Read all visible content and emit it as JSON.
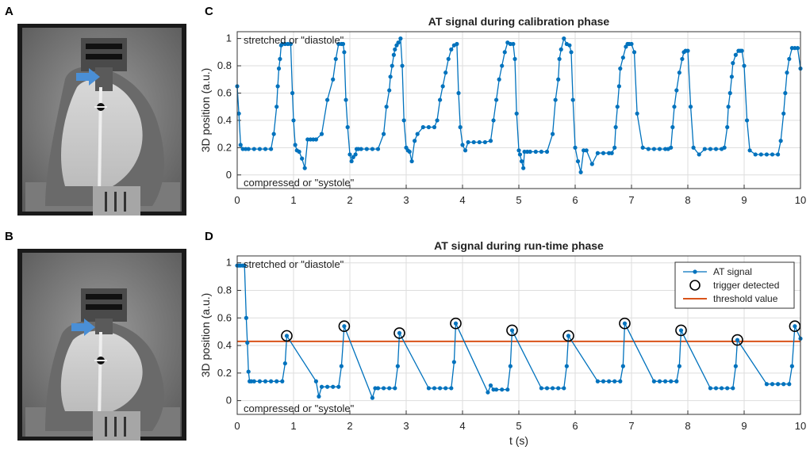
{
  "panels": {
    "A": "A",
    "B": "B",
    "C": "C",
    "D": "D"
  },
  "images": {
    "A": {
      "arrow_color": "#4a8fd6",
      "description_icon": "mri-phantom-icon"
    },
    "B": {
      "arrow_color": "#4a8fd6",
      "description_icon": "mri-phantom-icon"
    }
  },
  "colors": {
    "signal": "#0072bd",
    "threshold": "#d95319",
    "trigger": "#000000",
    "grid": "#dddddd"
  },
  "chart_data": [
    {
      "type": "line",
      "title": "AT signal during calibration phase",
      "xlabel": "",
      "ylabel": "3D position (a.u.)",
      "xlim": [
        0,
        10
      ],
      "ylim": [
        -0.1,
        1.05
      ],
      "xticks": [
        "0",
        "1",
        "2",
        "3",
        "4",
        "5",
        "6",
        "7",
        "8",
        "9",
        "10"
      ],
      "yticks": [
        "0",
        "0.2",
        "0.4",
        "0.6",
        "0.8",
        "1"
      ],
      "annotations": {
        "top": "stretched or \"diastole\"",
        "bottom": "compressed or \"systole\""
      },
      "grid": true,
      "series": [
        {
          "name": "AT signal",
          "x": [
            0,
            0.03,
            0.06,
            0.1,
            0.15,
            0.2,
            0.3,
            0.4,
            0.5,
            0.6,
            0.65,
            0.7,
            0.72,
            0.74,
            0.76,
            0.78,
            0.8,
            0.85,
            0.9,
            0.95,
            0.98,
            1.0,
            1.03,
            1.06,
            1.1,
            1.15,
            1.2,
            1.25,
            1.3,
            1.35,
            1.4,
            1.5,
            1.6,
            1.7,
            1.75,
            1.8,
            1.85,
            1.88,
            1.9,
            1.93,
            1.96,
            2.0,
            2.03,
            2.06,
            2.1,
            2.12,
            2.15,
            2.2,
            2.3,
            2.4,
            2.5,
            2.6,
            2.65,
            2.7,
            2.72,
            2.75,
            2.78,
            2.8,
            2.83,
            2.86,
            2.9,
            2.93,
            2.96,
            3.0,
            3.03,
            3.06,
            3.1,
            3.15,
            3.2,
            3.3,
            3.4,
            3.5,
            3.55,
            3.6,
            3.65,
            3.7,
            3.75,
            3.8,
            3.85,
            3.9,
            3.93,
            3.96,
            4.0,
            4.05,
            4.1,
            4.2,
            4.3,
            4.4,
            4.5,
            4.55,
            4.6,
            4.65,
            4.7,
            4.75,
            4.8,
            4.85,
            4.9,
            4.93,
            4.96,
            5.0,
            5.02,
            5.05,
            5.08,
            5.1,
            5.15,
            5.2,
            5.3,
            5.4,
            5.5,
            5.6,
            5.65,
            5.7,
            5.72,
            5.75,
            5.8,
            5.85,
            5.9,
            5.93,
            5.96,
            6.0,
            6.05,
            6.1,
            6.15,
            6.2,
            6.3,
            6.4,
            6.5,
            6.6,
            6.65,
            6.7,
            6.72,
            6.75,
            6.78,
            6.8,
            6.85,
            6.9,
            6.93,
            6.96,
            7.0,
            7.05,
            7.1,
            7.2,
            7.3,
            7.4,
            7.5,
            7.6,
            7.65,
            7.7,
            7.73,
            7.76,
            7.8,
            7.85,
            7.9,
            7.93,
            7.96,
            8.0,
            8.05,
            8.1,
            8.2,
            8.3,
            8.4,
            8.5,
            8.6,
            8.65,
            8.7,
            8.72,
            8.75,
            8.78,
            8.8,
            8.85,
            8.9,
            8.93,
            8.96,
            9.0,
            9.05,
            9.1,
            9.2,
            9.3,
            9.4,
            9.5,
            9.6,
            9.65,
            9.7,
            9.73,
            9.76,
            9.8,
            9.85,
            9.9,
            9.95,
            10.0
          ],
          "y": [
            0.65,
            0.45,
            0.22,
            0.19,
            0.19,
            0.19,
            0.19,
            0.19,
            0.19,
            0.19,
            0.3,
            0.5,
            0.65,
            0.78,
            0.85,
            0.95,
            0.96,
            0.96,
            0.96,
            0.96,
            0.6,
            0.4,
            0.22,
            0.18,
            0.17,
            0.12,
            0.05,
            0.26,
            0.26,
            0.26,
            0.26,
            0.3,
            0.55,
            0.7,
            0.85,
            0.96,
            0.96,
            0.96,
            0.9,
            0.55,
            0.35,
            0.15,
            0.1,
            0.13,
            0.15,
            0.19,
            0.19,
            0.19,
            0.19,
            0.19,
            0.19,
            0.3,
            0.5,
            0.62,
            0.72,
            0.8,
            0.88,
            0.92,
            0.95,
            0.97,
            1.0,
            0.8,
            0.4,
            0.2,
            0.18,
            0.17,
            0.1,
            0.25,
            0.3,
            0.35,
            0.35,
            0.35,
            0.4,
            0.55,
            0.65,
            0.75,
            0.85,
            0.92,
            0.95,
            0.96,
            0.6,
            0.35,
            0.22,
            0.18,
            0.24,
            0.24,
            0.24,
            0.24,
            0.25,
            0.4,
            0.55,
            0.7,
            0.8,
            0.9,
            0.97,
            0.96,
            0.96,
            0.85,
            0.45,
            0.18,
            0.15,
            0.1,
            0.05,
            0.17,
            0.17,
            0.17,
            0.17,
            0.17,
            0.17,
            0.3,
            0.55,
            0.7,
            0.85,
            0.92,
            1.0,
            0.96,
            0.95,
            0.9,
            0.55,
            0.2,
            0.1,
            0.02,
            0.18,
            0.18,
            0.08,
            0.16,
            0.16,
            0.16,
            0.16,
            0.2,
            0.35,
            0.5,
            0.65,
            0.78,
            0.86,
            0.94,
            0.96,
            0.96,
            0.96,
            0.9,
            0.45,
            0.2,
            0.19,
            0.19,
            0.19,
            0.19,
            0.19,
            0.2,
            0.35,
            0.5,
            0.62,
            0.75,
            0.85,
            0.9,
            0.91,
            0.91,
            0.5,
            0.2,
            0.15,
            0.19,
            0.19,
            0.19,
            0.19,
            0.2,
            0.35,
            0.5,
            0.6,
            0.72,
            0.82,
            0.88,
            0.91,
            0.91,
            0.91,
            0.8,
            0.4,
            0.18,
            0.15,
            0.15,
            0.15,
            0.15,
            0.15,
            0.25,
            0.45,
            0.6,
            0.75,
            0.85,
            0.93,
            0.93,
            0.93,
            0.78
          ]
        }
      ]
    },
    {
      "type": "line",
      "title": "AT signal during run-time phase",
      "xlabel": "t (s)",
      "ylabel": "3D position (a.u.)",
      "xlim": [
        0,
        10
      ],
      "ylim": [
        -0.1,
        1.05
      ],
      "xticks": [
        "0",
        "1",
        "2",
        "3",
        "4",
        "5",
        "6",
        "7",
        "8",
        "9",
        "10"
      ],
      "yticks": [
        "0",
        "0.2",
        "0.4",
        "0.6",
        "0.8",
        "1"
      ],
      "annotations": {
        "top": "stretched or \"diastole\"",
        "bottom": "compressed or \"systole\""
      },
      "grid": true,
      "legend": {
        "placement": "top-right",
        "entries": [
          "AT signal",
          "trigger detected",
          "threshold value"
        ]
      },
      "threshold": 0.43,
      "triggers": {
        "x": [
          0.88,
          1.9,
          2.88,
          3.88,
          4.88,
          5.88,
          6.88,
          7.88,
          8.88,
          9.9
        ],
        "y": [
          0.47,
          0.54,
          0.49,
          0.56,
          0.51,
          0.47,
          0.56,
          0.51,
          0.44,
          0.54
        ]
      },
      "series": [
        {
          "name": "AT signal",
          "x": [
            0,
            0.03,
            0.06,
            0.1,
            0.13,
            0.16,
            0.18,
            0.2,
            0.22,
            0.25,
            0.3,
            0.4,
            0.5,
            0.6,
            0.7,
            0.8,
            0.85,
            0.88,
            1.4,
            1.45,
            1.5,
            1.6,
            1.7,
            1.8,
            1.85,
            1.9,
            2.4,
            2.45,
            2.5,
            2.6,
            2.7,
            2.8,
            2.85,
            2.88,
            3.4,
            3.5,
            3.6,
            3.7,
            3.8,
            3.85,
            3.88,
            4.45,
            4.5,
            4.55,
            4.6,
            4.7,
            4.8,
            4.85,
            4.88,
            5.4,
            5.5,
            5.6,
            5.7,
            5.8,
            5.85,
            5.88,
            6.4,
            6.5,
            6.6,
            6.7,
            6.8,
            6.85,
            6.88,
            7.4,
            7.5,
            7.6,
            7.7,
            7.8,
            7.85,
            7.88,
            8.4,
            8.5,
            8.6,
            8.7,
            8.8,
            8.85,
            8.88,
            9.4,
            9.5,
            9.6,
            9.7,
            9.8,
            9.85,
            9.9,
            10.0
          ],
          "y": [
            0.98,
            0.98,
            0.98,
            0.98,
            0.98,
            0.6,
            0.42,
            0.21,
            0.14,
            0.14,
            0.14,
            0.14,
            0.14,
            0.14,
            0.14,
            0.14,
            0.27,
            0.47,
            0.14,
            0.03,
            0.1,
            0.1,
            0.1,
            0.1,
            0.25,
            0.54,
            0.02,
            0.09,
            0.09,
            0.09,
            0.09,
            0.09,
            0.25,
            0.49,
            0.09,
            0.09,
            0.09,
            0.09,
            0.09,
            0.28,
            0.56,
            0.06,
            0.11,
            0.08,
            0.08,
            0.08,
            0.08,
            0.25,
            0.51,
            0.09,
            0.09,
            0.09,
            0.09,
            0.09,
            0.25,
            0.47,
            0.14,
            0.14,
            0.14,
            0.14,
            0.14,
            0.25,
            0.56,
            0.14,
            0.14,
            0.14,
            0.14,
            0.14,
            0.25,
            0.51,
            0.09,
            0.09,
            0.09,
            0.09,
            0.09,
            0.25,
            0.44,
            0.12,
            0.12,
            0.12,
            0.12,
            0.12,
            0.25,
            0.54,
            0.45
          ]
        }
      ]
    }
  ]
}
